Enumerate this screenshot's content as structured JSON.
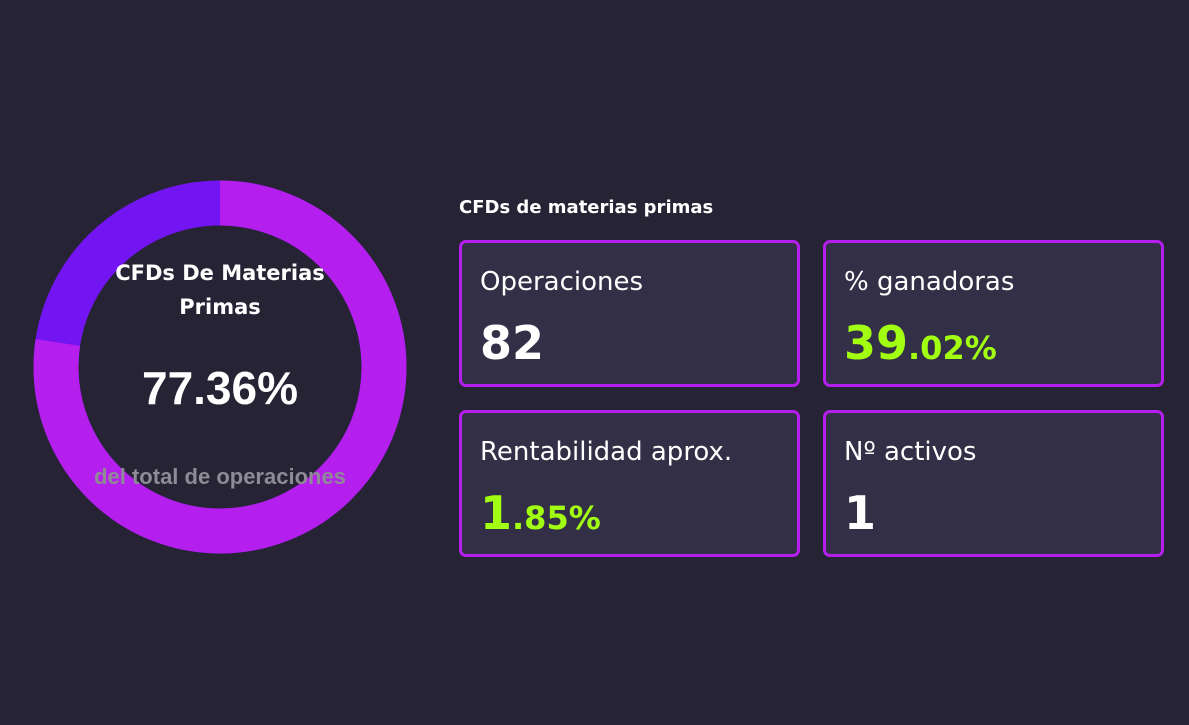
{
  "colors": {
    "background": "#262434",
    "card_background": "#332f46",
    "card_border": "#b51fee",
    "donut_primary": "#b51fee",
    "donut_secondary": "#7314f2",
    "positive": "#a3ff12",
    "muted": "#8e8b96"
  },
  "donut": {
    "title": "CFDs De Materias Primas",
    "value": "77.36%",
    "caption": "del total de operaciones",
    "fraction": 0.7736
  },
  "section_title": "CFDs de materias primas",
  "cards": {
    "operaciones": {
      "label": "Operaciones",
      "value": "82"
    },
    "ganadoras": {
      "label": "% ganadoras",
      "value_int": "39",
      "value_dec": ".02%"
    },
    "rentabilidad": {
      "label": "Rentabilidad aprox.",
      "value_int": "1",
      "value_dec": ".85%"
    },
    "activos": {
      "label": "Nº activos",
      "value": "1"
    }
  }
}
